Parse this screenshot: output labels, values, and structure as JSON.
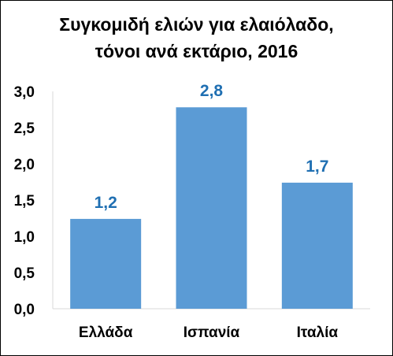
{
  "chart_data": {
    "type": "bar",
    "title_lines": [
      "Συγκομιδή ελιών για ελαιόλαδο,",
      "τόνοι ανά εκτάριο, 2016"
    ],
    "categories": [
      "Ελλάδα",
      "Ισπανία",
      "Ιταλία"
    ],
    "values": [
      1.24,
      2.78,
      1.74
    ],
    "data_labels": [
      "1,2",
      "2,8",
      "1,7"
    ],
    "y_ticks": [
      "0,0",
      "0,5",
      "1,0",
      "1,5",
      "2,0",
      "2,5",
      "3,0"
    ],
    "ylim": [
      0,
      3
    ],
    "grid": false,
    "legend": "none",
    "colors": {
      "bar": "#5b9bd5",
      "data_label": "#1f6fb2",
      "axis": "#d9d9d9"
    }
  }
}
